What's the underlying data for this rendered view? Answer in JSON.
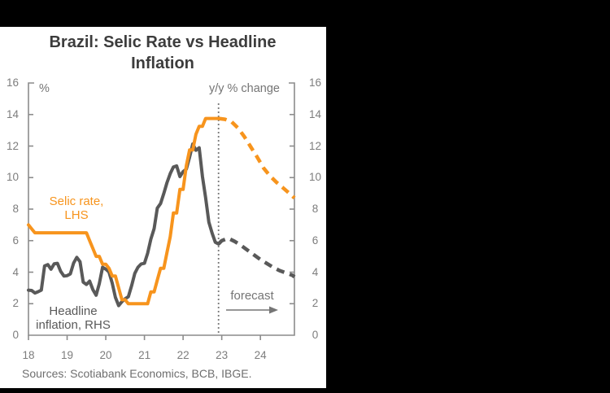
{
  "screen": {
    "background": "#000000",
    "card_background": "#FFFFFF"
  },
  "sources_text": "Sources: Scotiabank Economics, BCB, IBGE.",
  "annotations": {
    "selic_label": "Selic rate,\nLHS",
    "inflation_label": "Headline\ninflation, RHS",
    "forecast_label": "forecast"
  },
  "colors": {
    "selic_orange": "#F7941D",
    "inflation_gray": "#595959",
    "axis": "#8C8C8C",
    "tick_label": "#7D7D7D",
    "title": "#3C3C3C",
    "annotation_gray": "#757575",
    "divider": "#7A7A7A",
    "background": "#000000",
    "card": "#FFFFFF"
  },
  "chart_data": {
    "type": "line",
    "title": "Brazil: Selic Rate vs Headline Inflation",
    "grid": false,
    "legend_position": "in-plot text labels",
    "left_axis": {
      "label": "%",
      "min": 0,
      "max": 16,
      "tick_step": 2,
      "tick_labels": [
        "0",
        "2",
        "4",
        "6",
        "8",
        "10",
        "12",
        "14",
        "16"
      ]
    },
    "right_axis": {
      "label": "y/y % change",
      "min": 0,
      "max": 16,
      "tick_step": 2,
      "tick_labels": [
        "0",
        "2",
        "4",
        "6",
        "8",
        "10",
        "12",
        "14",
        "16"
      ]
    },
    "x_axis": {
      "tick_labels": [
        "18",
        "19",
        "20",
        "21",
        "22",
        "23",
        "24"
      ],
      "tick_values": [
        2018,
        2019,
        2020,
        2021,
        2022,
        2023,
        2024
      ],
      "range": [
        2018,
        2024.88
      ]
    },
    "forecast_divider_x": 2022.917,
    "series": [
      {
        "id": "inflation",
        "name": "Headline inflation, RHS",
        "axis": "right",
        "color": "#595959",
        "style": "solid",
        "unit": "y/y % change",
        "points": [
          [
            2018.0,
            2.86
          ],
          [
            2018.083,
            2.84
          ],
          [
            2018.167,
            2.68
          ],
          [
            2018.25,
            2.76
          ],
          [
            2018.333,
            2.86
          ],
          [
            2018.417,
            4.39
          ],
          [
            2018.5,
            4.48
          ],
          [
            2018.583,
            4.19
          ],
          [
            2018.667,
            4.53
          ],
          [
            2018.75,
            4.56
          ],
          [
            2018.833,
            4.05
          ],
          [
            2018.917,
            3.75
          ],
          [
            2019.0,
            3.78
          ],
          [
            2019.083,
            3.89
          ],
          [
            2019.167,
            4.58
          ],
          [
            2019.25,
            4.94
          ],
          [
            2019.333,
            4.66
          ],
          [
            2019.417,
            3.37
          ],
          [
            2019.5,
            3.22
          ],
          [
            2019.583,
            3.43
          ],
          [
            2019.667,
            2.89
          ],
          [
            2019.75,
            2.54
          ],
          [
            2019.833,
            3.27
          ],
          [
            2019.917,
            4.31
          ],
          [
            2020.0,
            4.19
          ],
          [
            2020.083,
            4.01
          ],
          [
            2020.167,
            3.3
          ],
          [
            2020.25,
            2.4
          ],
          [
            2020.333,
            1.88
          ],
          [
            2020.417,
            2.13
          ],
          [
            2020.5,
            2.31
          ],
          [
            2020.583,
            2.44
          ],
          [
            2020.667,
            3.14
          ],
          [
            2020.75,
            3.92
          ],
          [
            2020.833,
            4.31
          ],
          [
            2020.917,
            4.52
          ],
          [
            2021.0,
            4.56
          ],
          [
            2021.083,
            5.2
          ],
          [
            2021.167,
            6.1
          ],
          [
            2021.25,
            6.76
          ],
          [
            2021.333,
            8.06
          ],
          [
            2021.417,
            8.35
          ],
          [
            2021.5,
            8.99
          ],
          [
            2021.583,
            9.68
          ],
          [
            2021.667,
            10.25
          ],
          [
            2021.75,
            10.67
          ],
          [
            2021.833,
            10.74
          ],
          [
            2021.917,
            10.06
          ],
          [
            2022.0,
            10.38
          ],
          [
            2022.083,
            10.54
          ],
          [
            2022.167,
            11.3
          ],
          [
            2022.25,
            12.13
          ],
          [
            2022.333,
            11.73
          ],
          [
            2022.417,
            11.89
          ],
          [
            2022.5,
            10.07
          ],
          [
            2022.583,
            8.73
          ],
          [
            2022.667,
            7.17
          ],
          [
            2022.75,
            6.47
          ],
          [
            2022.833,
            5.9
          ],
          [
            2022.917,
            5.79
          ]
        ]
      },
      {
        "id": "inflation-forecast",
        "name": "Headline inflation forecast, RHS",
        "axis": "right",
        "color": "#595959",
        "style": "dashed",
        "unit": "y/y % change",
        "points": [
          [
            2022.917,
            5.79
          ],
          [
            2023.0,
            6.0
          ],
          [
            2023.167,
            6.15
          ],
          [
            2023.333,
            5.95
          ],
          [
            2023.5,
            5.7
          ],
          [
            2023.667,
            5.4
          ],
          [
            2023.833,
            5.1
          ],
          [
            2024.0,
            4.8
          ],
          [
            2024.167,
            4.55
          ],
          [
            2024.333,
            4.3
          ],
          [
            2024.5,
            4.1
          ],
          [
            2024.667,
            3.95
          ],
          [
            2024.83,
            3.8
          ],
          [
            2024.88,
            3.7
          ]
        ]
      },
      {
        "id": "selic",
        "name": "Selic rate, LHS",
        "axis": "left",
        "color": "#F7941D",
        "style": "solid",
        "unit": "%",
        "points": [
          [
            2018.0,
            7.0
          ],
          [
            2018.083,
            6.75
          ],
          [
            2018.167,
            6.5
          ],
          [
            2018.25,
            6.5
          ],
          [
            2018.333,
            6.5
          ],
          [
            2018.417,
            6.5
          ],
          [
            2018.5,
            6.5
          ],
          [
            2018.583,
            6.5
          ],
          [
            2018.667,
            6.5
          ],
          [
            2018.75,
            6.5
          ],
          [
            2018.833,
            6.5
          ],
          [
            2018.917,
            6.5
          ],
          [
            2019.0,
            6.5
          ],
          [
            2019.083,
            6.5
          ],
          [
            2019.167,
            6.5
          ],
          [
            2019.25,
            6.5
          ],
          [
            2019.333,
            6.5
          ],
          [
            2019.417,
            6.5
          ],
          [
            2019.5,
            6.5
          ],
          [
            2019.583,
            6.0
          ],
          [
            2019.667,
            5.5
          ],
          [
            2019.75,
            5.0
          ],
          [
            2019.833,
            5.0
          ],
          [
            2019.917,
            4.5
          ],
          [
            2020.0,
            4.5
          ],
          [
            2020.083,
            4.25
          ],
          [
            2020.167,
            3.75
          ],
          [
            2020.25,
            3.75
          ],
          [
            2020.333,
            3.0
          ],
          [
            2020.417,
            2.25
          ],
          [
            2020.5,
            2.25
          ],
          [
            2020.583,
            2.0
          ],
          [
            2020.667,
            2.0
          ],
          [
            2020.75,
            2.0
          ],
          [
            2020.833,
            2.0
          ],
          [
            2020.917,
            2.0
          ],
          [
            2021.0,
            2.0
          ],
          [
            2021.083,
            2.0
          ],
          [
            2021.167,
            2.75
          ],
          [
            2021.25,
            2.75
          ],
          [
            2021.333,
            3.5
          ],
          [
            2021.417,
            4.25
          ],
          [
            2021.5,
            4.25
          ],
          [
            2021.583,
            5.25
          ],
          [
            2021.667,
            6.25
          ],
          [
            2021.75,
            7.75
          ],
          [
            2021.833,
            7.75
          ],
          [
            2021.917,
            9.25
          ],
          [
            2022.0,
            9.25
          ],
          [
            2022.083,
            10.75
          ],
          [
            2022.167,
            11.75
          ],
          [
            2022.25,
            11.75
          ],
          [
            2022.333,
            12.75
          ],
          [
            2022.417,
            13.25
          ],
          [
            2022.5,
            13.25
          ],
          [
            2022.583,
            13.75
          ],
          [
            2022.667,
            13.75
          ],
          [
            2022.75,
            13.75
          ],
          [
            2022.833,
            13.75
          ],
          [
            2022.917,
            13.75
          ]
        ]
      },
      {
        "id": "selic-forecast",
        "name": "Selic rate forecast, LHS",
        "axis": "left",
        "color": "#F7941D",
        "style": "dashed",
        "unit": "%",
        "points": [
          [
            2022.917,
            13.75
          ],
          [
            2023.083,
            13.7
          ],
          [
            2023.25,
            13.55
          ],
          [
            2023.417,
            13.15
          ],
          [
            2023.583,
            12.6
          ],
          [
            2023.75,
            11.95
          ],
          [
            2023.917,
            11.3
          ],
          [
            2024.083,
            10.6
          ],
          [
            2024.25,
            10.1
          ],
          [
            2024.417,
            9.7
          ],
          [
            2024.583,
            9.35
          ],
          [
            2024.75,
            9.0
          ],
          [
            2024.88,
            8.7
          ]
        ]
      }
    ]
  }
}
